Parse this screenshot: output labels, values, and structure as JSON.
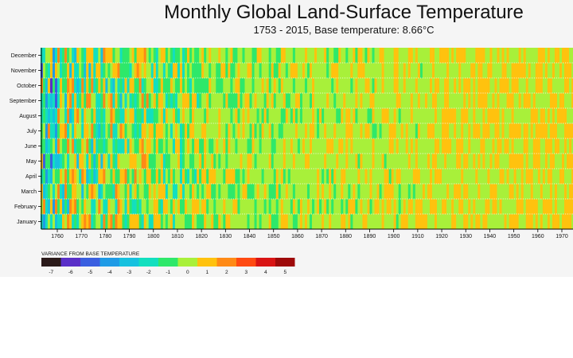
{
  "chart_data": {
    "type": "heatmap",
    "title": "Monthly Global Land-Surface Temperature",
    "subtitle": "1753 - 2015, Base temperature: 8.66°C",
    "base_temperature": 8.66,
    "x_range": [
      1753,
      2015
    ],
    "visible_x_range": [
      1753,
      1975
    ],
    "x_ticks": [
      1760,
      1770,
      1780,
      1790,
      1800,
      1810,
      1820,
      1830,
      1840,
      1850,
      1860,
      1870,
      1880,
      1890,
      1900,
      1910,
      1920,
      1930,
      1940,
      1950,
      1960,
      1970
    ],
    "y_categories": [
      "January",
      "February",
      "March",
      "April",
      "May",
      "June",
      "July",
      "August",
      "September",
      "October",
      "November",
      "December"
    ],
    "legend": {
      "title": "VARIANCE FROM BASE TEMPERATURE",
      "ticks": [
        -7,
        -6,
        -5,
        -4,
        -3,
        -2,
        -1,
        0,
        1,
        2,
        3,
        4,
        5
      ],
      "colors": [
        "#2b1a1a",
        "#5a2fc8",
        "#3a5fe0",
        "#1f9be6",
        "#16c1df",
        "#12dfbf",
        "#2ee86a",
        "#a8f03a",
        "#ffc20e",
        "#ff8a16",
        "#ff4a12",
        "#d91414",
        "#9e0a0a"
      ]
    }
  },
  "axes": {
    "x_tick_labels": [
      "1760",
      "1770",
      "1780",
      "1790",
      "1800",
      "1810",
      "1820",
      "1830",
      "1840",
      "1850",
      "1860",
      "1870",
      "1880",
      "1890",
      "1900",
      "1910",
      "1920",
      "1930",
      "1940",
      "1950",
      "1960",
      "1970"
    ]
  }
}
